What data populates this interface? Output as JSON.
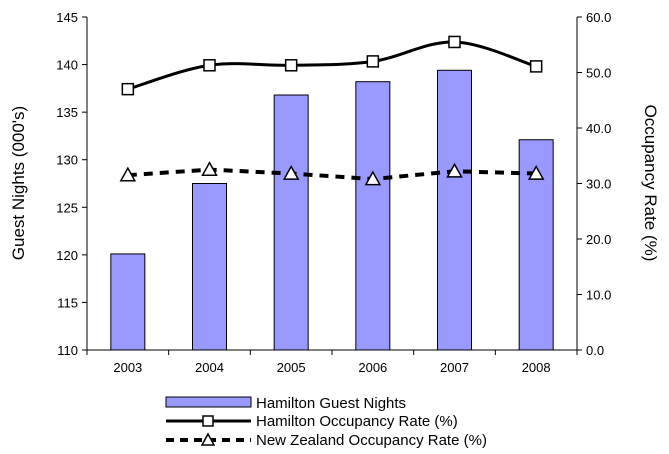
{
  "chart_data": {
    "type": "bar",
    "categories": [
      "2003",
      "2004",
      "2005",
      "2006",
      "2007",
      "2008"
    ],
    "series": [
      {
        "name": "Hamilton Guest Nights",
        "type": "bar",
        "axis": "left",
        "values": [
          120.1,
          127.5,
          136.8,
          138.2,
          139.4,
          132.1
        ]
      },
      {
        "name": "Hamilton Occupancy Rate (%)",
        "type": "line",
        "axis": "right",
        "marker": "square",
        "values": [
          47.0,
          51.3,
          51.3,
          52.0,
          55.5,
          51.1
        ]
      },
      {
        "name": "New Zealand Occupancy Rate (%)",
        "type": "line",
        "axis": "right",
        "marker": "triangle",
        "dashed": true,
        "values": [
          31.5,
          32.5,
          31.8,
          30.8,
          32.2,
          31.8
        ]
      }
    ],
    "ylabel": "Guest Nights  (000's)",
    "y2label": "Occupancy Rate  (%)",
    "ylim": [
      110,
      145
    ],
    "yticks": [
      "145",
      "140",
      "135",
      "130",
      "125",
      "120",
      "115",
      "110"
    ],
    "y2lim": [
      0,
      60
    ],
    "y2ticks": [
      "60.0",
      "50.0",
      "40.0",
      "30.0",
      "20.0",
      "10.0",
      "0.0"
    ],
    "grid": false,
    "legend_position": "bottom",
    "colors": {
      "bar_fill": "#9999ff",
      "bar_stroke": "#000000",
      "line": "#000000",
      "marker_fill": "#ffffff"
    }
  }
}
